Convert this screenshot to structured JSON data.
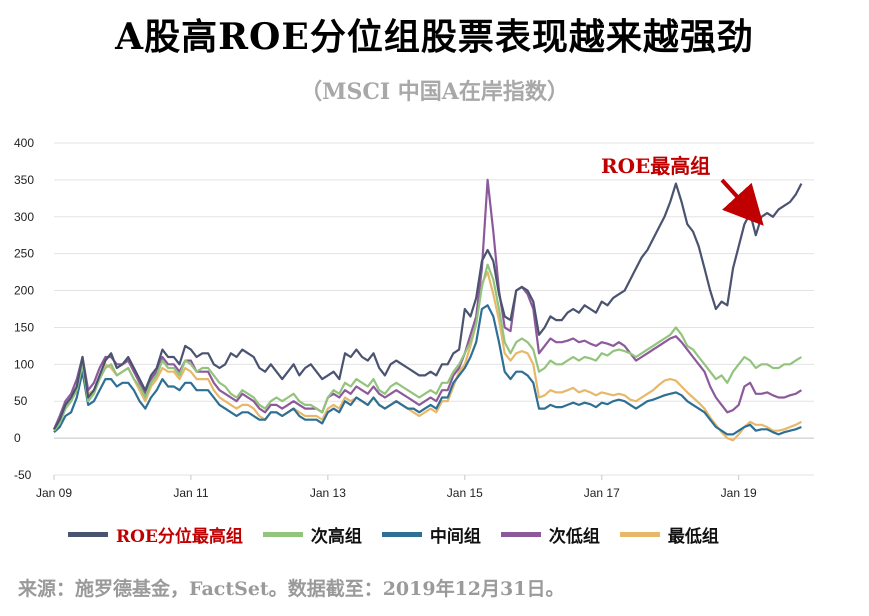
{
  "title": "A股高ROE分位组股票表现越来越强劲",
  "subtitle": "（MSCI 中国A在岸指数）",
  "annotation": "ROE最高组",
  "source": "来源：施罗德基金，FactSet。数据截至：2019年12月31日。",
  "colors": {
    "accent": "#c00000",
    "axis": "#c8c8c8",
    "grid": "#e3e3e3"
  },
  "chart_data": {
    "type": "line",
    "x": [
      2009.0,
      2009.0833,
      2009.1667,
      2009.25,
      2009.3333,
      2009.4167,
      2009.5,
      2009.5833,
      2009.6667,
      2009.75,
      2009.8333,
      2009.9167,
      2010.0,
      2010.0833,
      2010.1667,
      2010.25,
      2010.3333,
      2010.4167,
      2010.5,
      2010.5833,
      2010.6667,
      2010.75,
      2010.8333,
      2010.9167,
      2011.0,
      2011.0833,
      2011.1667,
      2011.25,
      2011.3333,
      2011.4167,
      2011.5,
      2011.5833,
      2011.6667,
      2011.75,
      2011.8333,
      2011.9167,
      2012.0,
      2012.0833,
      2012.1667,
      2012.25,
      2012.3333,
      2012.4167,
      2012.5,
      2012.5833,
      2012.6667,
      2012.75,
      2012.8333,
      2012.9167,
      2013.0,
      2013.0833,
      2013.1667,
      2013.25,
      2013.3333,
      2013.4167,
      2013.5,
      2013.5833,
      2013.6667,
      2013.75,
      2013.8333,
      2013.9167,
      2014.0,
      2014.0833,
      2014.1667,
      2014.25,
      2014.3333,
      2014.4167,
      2014.5,
      2014.5833,
      2014.6667,
      2014.75,
      2014.8333,
      2014.9167,
      2015.0,
      2015.0833,
      2015.1667,
      2015.25,
      2015.3333,
      2015.4167,
      2015.5,
      2015.5833,
      2015.6667,
      2015.75,
      2015.8333,
      2015.9167,
      2016.0,
      2016.0833,
      2016.1667,
      2016.25,
      2016.3333,
      2016.4167,
      2016.5,
      2016.5833,
      2016.6667,
      2016.75,
      2016.8333,
      2016.9167,
      2017.0,
      2017.0833,
      2017.1667,
      2017.25,
      2017.3333,
      2017.4167,
      2017.5,
      2017.5833,
      2017.6667,
      2017.75,
      2017.8333,
      2017.9167,
      2018.0,
      2018.0833,
      2018.1667,
      2018.25,
      2018.3333,
      2018.4167,
      2018.5,
      2018.5833,
      2018.6667,
      2018.75,
      2018.8333,
      2018.9167,
      2019.0,
      2019.0833,
      2019.1667,
      2019.25,
      2019.3333,
      2019.4167,
      2019.5,
      2019.5833,
      2019.6667,
      2019.75,
      2019.8333,
      2019.9167
    ],
    "xlim": [
      2009,
      2020.1
    ],
    "ylim": [
      -50,
      400
    ],
    "yticks": [
      -50,
      0,
      50,
      100,
      150,
      200,
      250,
      300,
      350,
      400
    ],
    "xtick_positions": [
      2009,
      2011,
      2013,
      2015,
      2017,
      2019
    ],
    "xtick_labels": [
      "Jan 09",
      "Jan 11",
      "Jan 13",
      "Jan 15",
      "Jan 17",
      "Jan 19"
    ],
    "grid": true,
    "legend_position": "bottom",
    "series": [
      {
        "name": "ROE分位最高组",
        "color": "#4a5370",
        "values": [
          12,
          25,
          45,
          55,
          70,
          110,
          55,
          65,
          85,
          105,
          115,
          95,
          100,
          110,
          95,
          80,
          65,
          85,
          95,
          120,
          110,
          110,
          100,
          125,
          120,
          110,
          115,
          115,
          100,
          95,
          100,
          115,
          110,
          120,
          115,
          110,
          95,
          90,
          100,
          90,
          80,
          90,
          100,
          85,
          95,
          100,
          90,
          80,
          85,
          90,
          80,
          115,
          110,
          120,
          110,
          105,
          115,
          95,
          85,
          100,
          105,
          100,
          95,
          90,
          85,
          85,
          90,
          85,
          100,
          100,
          115,
          120,
          175,
          165,
          190,
          240,
          255,
          240,
          195,
          165,
          160,
          200,
          205,
          200,
          185,
          140,
          150,
          165,
          160,
          160,
          170,
          175,
          170,
          180,
          175,
          170,
          185,
          180,
          190,
          195,
          200,
          215,
          230,
          245,
          255,
          270,
          285,
          300,
          320,
          345,
          320,
          290,
          280,
          260,
          230,
          200,
          175,
          185,
          180,
          230,
          260,
          290,
          305,
          275,
          300,
          305,
          300,
          310,
          315,
          320,
          330,
          345
        ]
      },
      {
        "name": "次高组",
        "color": "#93c47d",
        "values": [
          10,
          20,
          40,
          50,
          65,
          100,
          50,
          60,
          80,
          95,
          100,
          85,
          90,
          95,
          80,
          70,
          55,
          75,
          85,
          105,
          95,
          95,
          85,
          105,
          100,
          90,
          95,
          95,
          85,
          75,
          70,
          60,
          55,
          65,
          60,
          55,
          45,
          40,
          50,
          55,
          50,
          55,
          60,
          50,
          45,
          45,
          40,
          35,
          55,
          65,
          60,
          75,
          70,
          80,
          75,
          70,
          80,
          65,
          60,
          70,
          75,
          70,
          65,
          60,
          55,
          60,
          65,
          60,
          75,
          75,
          90,
          100,
          115,
          130,
          155,
          205,
          235,
          215,
          175,
          130,
          115,
          130,
          135,
          130,
          120,
          90,
          95,
          105,
          100,
          100,
          105,
          110,
          105,
          110,
          108,
          105,
          115,
          112,
          118,
          120,
          118,
          115,
          110,
          115,
          120,
          125,
          130,
          135,
          140,
          150,
          140,
          125,
          120,
          110,
          100,
          90,
          80,
          85,
          75,
          90,
          100,
          110,
          105,
          95,
          100,
          100,
          95,
          95,
          100,
          100,
          105,
          110
        ]
      },
      {
        "name": "中间组",
        "color": "#2e6f95",
        "values": [
          8,
          15,
          30,
          35,
          55,
          90,
          45,
          50,
          65,
          80,
          80,
          70,
          75,
          75,
          65,
          50,
          40,
          55,
          65,
          80,
          70,
          70,
          65,
          75,
          75,
          65,
          65,
          65,
          55,
          45,
          40,
          35,
          30,
          35,
          35,
          30,
          25,
          25,
          35,
          35,
          30,
          35,
          40,
          30,
          25,
          25,
          25,
          20,
          35,
          40,
          35,
          50,
          45,
          55,
          50,
          45,
          55,
          45,
          40,
          45,
          50,
          45,
          40,
          40,
          35,
          40,
          45,
          40,
          55,
          55,
          75,
          85,
          95,
          110,
          130,
          175,
          180,
          165,
          130,
          90,
          80,
          90,
          90,
          85,
          75,
          40,
          40,
          45,
          42,
          42,
          45,
          48,
          45,
          48,
          46,
          42,
          48,
          46,
          50,
          52,
          50,
          45,
          40,
          45,
          50,
          52,
          55,
          58,
          60,
          62,
          58,
          50,
          45,
          40,
          35,
          25,
          15,
          10,
          5,
          5,
          10,
          15,
          18,
          10,
          12,
          12,
          8,
          5,
          8,
          10,
          12,
          15
        ]
      },
      {
        "name": "次低组",
        "color": "#8c5a9a",
        "values": [
          12,
          30,
          50,
          60,
          80,
          110,
          65,
          75,
          95,
          110,
          110,
          100,
          100,
          105,
          90,
          75,
          60,
          80,
          90,
          110,
          100,
          100,
          90,
          105,
          105,
          90,
          90,
          90,
          75,
          65,
          60,
          55,
          50,
          60,
          55,
          50,
          40,
          35,
          45,
          45,
          40,
          45,
          50,
          45,
          40,
          40,
          40,
          35,
          55,
          60,
          55,
          65,
          60,
          70,
          65,
          60,
          70,
          60,
          55,
          60,
          65,
          60,
          55,
          50,
          45,
          50,
          55,
          50,
          65,
          65,
          85,
          95,
          115,
          140,
          165,
          230,
          350,
          280,
          200,
          150,
          145,
          200,
          205,
          195,
          175,
          115,
          125,
          135,
          130,
          130,
          132,
          135,
          130,
          132,
          128,
          125,
          130,
          128,
          125,
          130,
          125,
          115,
          105,
          110,
          115,
          120,
          125,
          130,
          135,
          138,
          130,
          120,
          110,
          100,
          90,
          70,
          55,
          45,
          35,
          38,
          45,
          70,
          75,
          60,
          60,
          62,
          58,
          55,
          55,
          58,
          60,
          65
        ]
      },
      {
        "name": "最低组",
        "color": "#e8b86a",
        "values": [
          10,
          25,
          40,
          50,
          70,
          105,
          60,
          65,
          80,
          100,
          95,
          85,
          90,
          95,
          80,
          65,
          50,
          70,
          80,
          95,
          90,
          90,
          80,
          95,
          90,
          80,
          80,
          80,
          65,
          55,
          50,
          45,
          40,
          45,
          45,
          40,
          30,
          25,
          35,
          35,
          30,
          35,
          40,
          35,
          30,
          30,
          30,
          25,
          40,
          45,
          40,
          55,
          50,
          55,
          50,
          45,
          55,
          45,
          40,
          45,
          50,
          45,
          40,
          35,
          30,
          35,
          40,
          35,
          50,
          50,
          70,
          90,
          100,
          125,
          155,
          210,
          225,
          195,
          160,
          115,
          105,
          115,
          118,
          115,
          100,
          55,
          58,
          65,
          62,
          62,
          65,
          68,
          62,
          65,
          62,
          58,
          62,
          60,
          58,
          60,
          58,
          52,
          50,
          55,
          60,
          65,
          72,
          78,
          80,
          78,
          70,
          62,
          55,
          48,
          40,
          28,
          18,
          8,
          0,
          -3,
          5,
          15,
          22,
          18,
          18,
          15,
          10,
          10,
          12,
          15,
          18,
          22
        ]
      }
    ]
  }
}
